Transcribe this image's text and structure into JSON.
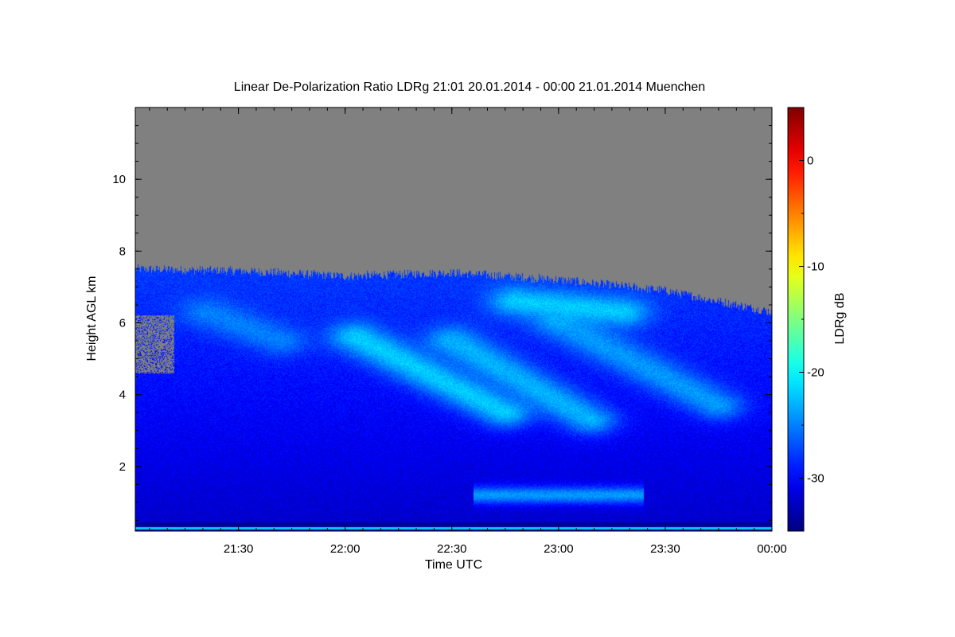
{
  "chart_data": {
    "type": "heatmap",
    "title": "Linear De-Polarization Ratio LDRg   21:01 20.01.2014 - 00:00 21.01.2014 Muenchen",
    "xlabel": "Time UTC",
    "ylabel": "Height AGL km",
    "colorbar_label": "LDRg dB",
    "x_range_hours": [
      21.0167,
      24.0
    ],
    "y_range_km": [
      0.2,
      12.0
    ],
    "x_ticks": [
      {
        "value": 21.5,
        "label": "21:30"
      },
      {
        "value": 22.0,
        "label": "22:00"
      },
      {
        "value": 22.5,
        "label": "22:30"
      },
      {
        "value": 23.0,
        "label": "23:00"
      },
      {
        "value": 23.5,
        "label": "23:30"
      },
      {
        "value": 24.0,
        "label": "00:00"
      }
    ],
    "y_ticks": [
      {
        "value": 2,
        "label": "2"
      },
      {
        "value": 4,
        "label": "4"
      },
      {
        "value": 6,
        "label": "6"
      },
      {
        "value": 8,
        "label": "8"
      },
      {
        "value": 10,
        "label": "10"
      }
    ],
    "colorbar_range_db": [
      -35,
      5
    ],
    "colorbar_ticks": [
      {
        "value": 0,
        "label": "0"
      },
      {
        "value": -10,
        "label": "-10"
      },
      {
        "value": -20,
        "label": "-20"
      },
      {
        "value": -30,
        "label": "-30"
      }
    ],
    "colormap": "jet",
    "no_data_color": "#808080",
    "cloud_top_km": [
      {
        "t": 21.0167,
        "h": 7.5
      },
      {
        "t": 21.5,
        "h": 7.45
      },
      {
        "t": 22.0,
        "h": 7.3
      },
      {
        "t": 22.5,
        "h": 7.4
      },
      {
        "t": 23.0,
        "h": 7.2
      },
      {
        "t": 23.5,
        "h": 6.9
      },
      {
        "t": 24.0,
        "h": 6.3
      }
    ],
    "cloud_typical_ldr_db": -31,
    "fall_streaks": [
      {
        "t0": 22.05,
        "h0": 5.6,
        "t1": 22.75,
        "h1": 3.5,
        "ldr_db": -22
      },
      {
        "t0": 22.5,
        "h0": 5.5,
        "t1": 23.15,
        "h1": 3.3,
        "ldr_db": -23
      },
      {
        "t0": 23.0,
        "h0": 6.0,
        "t1": 23.75,
        "h1": 3.7,
        "ldr_db": -24
      },
      {
        "t0": 21.35,
        "h0": 6.3,
        "t1": 21.7,
        "h1": 5.5,
        "ldr_db": -25
      },
      {
        "t0": 22.8,
        "h0": 6.6,
        "t1": 23.3,
        "h1": 6.3,
        "ldr_db": -22
      }
    ],
    "low_layer": {
      "t0": 22.6,
      "t1": 23.4,
      "h": 1.2,
      "ldr_db": -24
    }
  }
}
